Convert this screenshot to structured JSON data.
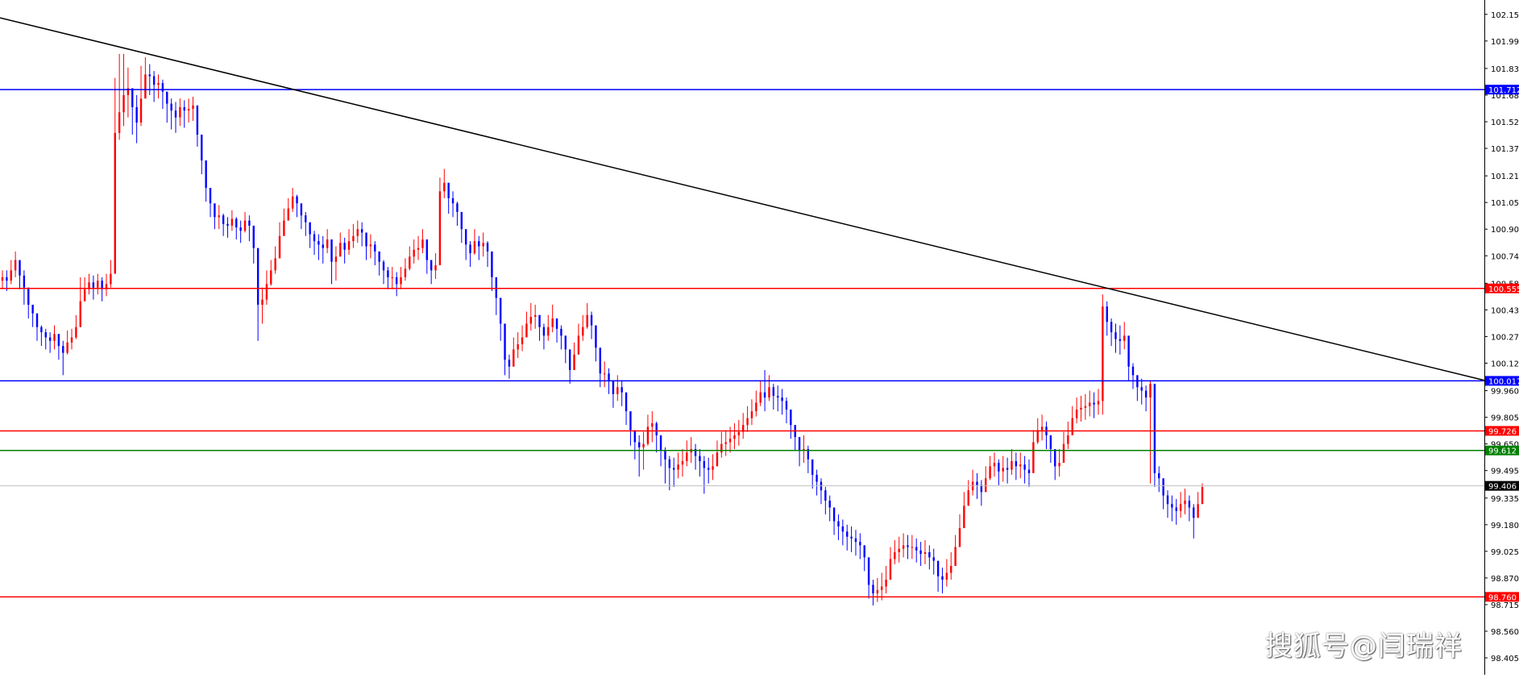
{
  "chart_data": {
    "type": "candlestick",
    "title": "",
    "ylim": [
      98.33,
      102.21
    ],
    "y_ticks": [
      "102.150",
      "101.995",
      "101.835",
      "101.680",
      "101.525",
      "101.370",
      "101.210",
      "101.055",
      "100.900",
      "100.745",
      "100.585",
      "100.430",
      "100.275",
      "100.120",
      "99.960",
      "99.805",
      "99.650",
      "99.495",
      "99.335",
      "99.180",
      "99.025",
      "98.870",
      "98.715",
      "98.560",
      "98.405"
    ],
    "current_price": "99.406",
    "up_color": "#ff0000",
    "down_color": "#0000ff",
    "levels": [
      {
        "label": "101.712",
        "value": 101.712,
        "color": "#0000ff"
      },
      {
        "label": "100.555",
        "value": 100.555,
        "color": "#ff0000"
      },
      {
        "label": "100.017",
        "value": 100.017,
        "color": "#0000ff"
      },
      {
        "label": "99.726",
        "value": 99.726,
        "color": "#ff0000"
      },
      {
        "label": "99.612",
        "value": 99.612,
        "color": "#008000"
      },
      {
        "label": "98.760",
        "value": 98.76,
        "color": "#ff0000"
      }
    ],
    "trendline": {
      "from": [
        0,
        102.13
      ],
      "to": [
        378,
        100.02
      ],
      "color": "#000000"
    },
    "series_close": [
      100.62,
      100.6,
      100.66,
      100.72,
      100.63,
      100.56,
      100.46,
      100.41,
      100.33,
      100.3,
      100.27,
      100.25,
      100.29,
      100.22,
      100.18,
      100.24,
      100.27,
      100.33,
      100.48,
      100.55,
      100.59,
      100.56,
      100.6,
      100.55,
      100.58,
      100.64,
      101.46,
      101.58,
      101.68,
      101.72,
      101.61,
      101.52,
      101.66,
      101.8,
      101.79,
      101.74,
      101.75,
      101.7,
      101.63,
      101.59,
      101.55,
      101.61,
      101.59,
      101.6,
      101.62,
      101.45,
      101.3,
      101.14,
      101.05,
      100.97,
      100.98,
      100.93,
      100.92,
      100.96,
      100.91,
      100.89,
      100.95,
      100.92,
      100.79,
      100.46,
      100.49,
      100.58,
      100.66,
      100.73,
      100.86,
      100.95,
      101.02,
      101.09,
      101.05,
      100.98,
      100.94,
      100.87,
      100.83,
      100.81,
      100.79,
      100.84,
      100.71,
      100.74,
      100.82,
      100.78,
      100.83,
      100.86,
      100.9,
      100.88,
      100.8,
      100.81,
      100.77,
      100.71,
      100.66,
      100.62,
      100.62,
      100.58,
      100.62,
      100.67,
      100.74,
      100.78,
      100.79,
      100.84,
      100.72,
      100.66,
      100.69,
      101.12,
      101.17,
      101.08,
      101.05,
      101.0,
      100.9,
      100.81,
      100.76,
      100.83,
      100.8,
      100.82,
      100.77,
      100.62,
      100.5,
      100.35,
      100.14,
      100.1,
      100.2,
      100.23,
      100.27,
      100.35,
      100.39,
      100.4,
      100.33,
      100.28,
      100.33,
      100.38,
      100.32,
      100.28,
      100.2,
      100.08,
      100.17,
      100.28,
      100.33,
      100.4,
      100.34,
      100.21,
      100.06,
      100.06,
      100.02,
      99.94,
      99.98,
      99.95,
      99.84,
      99.73,
      99.66,
      99.63,
      99.65,
      99.75,
      99.77,
      99.7,
      99.61,
      99.56,
      99.51,
      99.5,
      99.53,
      99.55,
      99.6,
      99.62,
      99.58,
      99.55,
      99.51,
      99.5,
      99.52,
      99.6,
      99.65,
      99.66,
      99.68,
      99.7,
      99.72,
      99.76,
      99.8,
      99.84,
      99.89,
      99.95,
      99.92,
      99.98,
      99.93,
      99.92,
      99.9,
      99.85,
      99.76,
      99.69,
      99.61,
      99.62,
      99.56,
      99.47,
      99.43,
      99.38,
      99.32,
      99.28,
      99.2,
      99.17,
      99.14,
      99.11,
      99.1,
      99.08,
      99.06,
      98.99,
      98.83,
      98.78,
      98.8,
      98.82,
      98.86,
      98.98,
      99.02,
      99.04,
      99.06,
      99.05,
      99.05,
      99.03,
      99.01,
      99.02,
      98.99,
      98.97,
      98.88,
      98.86,
      98.9,
      98.94,
      99.05,
      99.16,
      99.29,
      99.38,
      99.43,
      99.41,
      99.37,
      99.45,
      99.52,
      99.54,
      99.49,
      99.51,
      99.5,
      99.55,
      99.52,
      99.53,
      99.5,
      99.48,
      99.66,
      99.73,
      99.75,
      99.7,
      99.62,
      99.52,
      99.54,
      99.65,
      99.7,
      99.8,
      99.85,
      99.86,
      99.87,
      99.89,
      99.88,
      99.9,
      100.45,
      100.36,
      100.3,
      100.26,
      100.25,
      100.28,
      100.1,
      100.05,
      99.98,
      99.96,
      99.92,
      100.0,
      99.48,
      99.45,
      99.35,
      99.3,
      99.28,
      99.26,
      99.3,
      99.32,
      99.28,
      99.22,
      99.3,
      99.4
    ],
    "series_high": [
      100.66,
      100.66,
      100.72,
      100.77,
      100.7,
      100.66,
      100.52,
      100.46,
      100.4,
      100.34,
      100.32,
      100.3,
      100.34,
      100.28,
      100.25,
      100.31,
      100.32,
      100.4,
      100.62,
      100.62,
      100.64,
      100.63,
      100.64,
      100.62,
      100.64,
      100.72,
      101.78,
      101.92,
      101.92,
      101.84,
      101.68,
      101.68,
      101.85,
      101.9,
      101.86,
      101.82,
      101.8,
      101.77,
      101.7,
      101.66,
      101.64,
      101.66,
      101.65,
      101.66,
      101.67,
      101.52,
      101.38,
      101.2,
      101.1,
      101.03,
      101.04,
      100.99,
      100.97,
      101.01,
      100.97,
      100.95,
      101.0,
      100.98,
      100.86,
      100.55,
      100.56,
      100.66,
      100.72,
      100.8,
      100.94,
      101.02,
      101.08,
      101.14,
      101.1,
      101.04,
      101.0,
      100.93,
      100.89,
      100.87,
      100.86,
      100.9,
      100.79,
      100.8,
      100.88,
      100.85,
      100.9,
      100.93,
      100.95,
      100.94,
      100.86,
      100.87,
      100.83,
      100.77,
      100.72,
      100.68,
      100.68,
      100.65,
      100.68,
      100.73,
      100.8,
      100.84,
      100.86,
      100.9,
      100.8,
      100.72,
      100.76,
      101.2,
      101.25,
      101.16,
      101.12,
      101.06,
      100.96,
      100.88,
      100.83,
      100.9,
      100.86,
      100.88,
      100.83,
      100.7,
      100.57,
      100.42,
      100.22,
      100.17,
      100.27,
      100.3,
      100.34,
      100.42,
      100.47,
      100.46,
      100.4,
      100.35,
      100.4,
      100.46,
      100.38,
      100.34,
      100.27,
      100.16,
      100.24,
      100.35,
      100.4,
      100.47,
      100.42,
      100.29,
      100.13,
      100.13,
      100.09,
      100.01,
      100.05,
      100.02,
      99.92,
      99.81,
      99.73,
      99.7,
      99.72,
      99.82,
      99.84,
      99.78,
      99.68,
      99.63,
      99.58,
      99.57,
      99.6,
      99.62,
      99.67,
      99.69,
      99.65,
      99.62,
      99.58,
      99.57,
      99.59,
      99.67,
      99.72,
      99.73,
      99.75,
      99.77,
      99.79,
      99.83,
      99.87,
      99.91,
      99.96,
      100.02,
      100.08,
      100.05,
      100.0,
      99.99,
      99.97,
      99.92,
      99.84,
      99.76,
      99.68,
      99.7,
      99.64,
      99.55,
      99.5,
      99.45,
      99.4,
      99.35,
      99.28,
      99.24,
      99.21,
      99.18,
      99.17,
      99.15,
      99.13,
      99.06,
      98.91,
      98.86,
      98.87,
      98.9,
      98.94,
      99.05,
      99.09,
      99.11,
      99.13,
      99.12,
      99.12,
      99.1,
      99.08,
      99.09,
      99.06,
      99.04,
      98.95,
      98.93,
      98.98,
      99.02,
      99.12,
      99.24,
      99.37,
      99.44,
      99.5,
      99.48,
      99.44,
      99.52,
      99.58,
      99.6,
      99.56,
      99.58,
      99.57,
      99.62,
      99.6,
      99.6,
      99.58,
      99.56,
      99.73,
      99.8,
      99.82,
      99.78,
      99.7,
      99.6,
      99.62,
      99.72,
      99.78,
      99.87,
      99.92,
      99.93,
      99.94,
      99.96,
      99.95,
      99.97,
      100.52,
      100.48,
      100.38,
      100.35,
      100.34,
      100.36,
      100.18,
      100.12,
      100.05,
      100.03,
      99.99,
      100.02,
      99.55,
      99.52,
      99.43,
      99.38,
      99.35,
      99.33,
      99.37,
      99.39,
      99.35,
      99.3,
      99.37,
      99.42
    ],
    "series_low": [
      100.55,
      100.54,
      100.58,
      100.62,
      100.55,
      100.46,
      100.38,
      100.33,
      100.25,
      100.22,
      100.2,
      100.18,
      100.2,
      100.14,
      100.05,
      100.17,
      100.2,
      100.26,
      100.4,
      100.48,
      100.52,
      100.49,
      100.52,
      100.48,
      100.51,
      100.56,
      101.3,
      101.42,
      101.5,
      101.55,
      101.45,
      101.4,
      101.5,
      101.66,
      101.68,
      101.64,
      101.66,
      101.6,
      101.52,
      101.48,
      101.46,
      101.5,
      101.49,
      101.52,
      101.53,
      101.38,
      101.22,
      101.06,
      100.97,
      100.9,
      100.9,
      100.86,
      100.85,
      100.89,
      100.84,
      100.82,
      100.88,
      100.83,
      100.7,
      100.25,
      100.35,
      100.46,
      100.57,
      100.64,
      100.78,
      100.88,
      100.95,
      101.0,
      100.97,
      100.9,
      100.86,
      100.79,
      100.75,
      100.72,
      100.7,
      100.76,
      100.58,
      100.6,
      100.75,
      100.7,
      100.75,
      100.79,
      100.82,
      100.8,
      100.72,
      100.73,
      100.69,
      100.63,
      100.58,
      100.55,
      100.55,
      100.51,
      100.55,
      100.6,
      100.66,
      100.7,
      100.72,
      100.76,
      100.64,
      100.58,
      100.61,
      100.98,
      101.08,
      100.99,
      100.97,
      100.92,
      100.82,
      100.72,
      100.68,
      100.75,
      100.72,
      100.74,
      100.68,
      100.54,
      100.4,
      100.25,
      100.05,
      100.03,
      100.12,
      100.15,
      100.19,
      100.27,
      100.31,
      100.32,
      100.25,
      100.2,
      100.25,
      100.3,
      100.24,
      100.2,
      100.12,
      100.0,
      100.09,
      100.2,
      100.25,
      100.32,
      100.26,
      100.13,
      99.98,
      99.98,
      99.94,
      99.86,
      99.9,
      99.87,
      99.76,
      99.64,
      99.56,
      99.46,
      99.5,
      99.64,
      99.66,
      99.6,
      99.52,
      99.42,
      99.38,
      99.4,
      99.45,
      99.46,
      99.52,
      99.54,
      99.5,
      99.46,
      99.36,
      99.42,
      99.44,
      99.52,
      99.57,
      99.58,
      99.6,
      99.62,
      99.64,
      99.68,
      99.72,
      99.76,
      99.81,
      99.87,
      99.84,
      99.9,
      99.85,
      99.84,
      99.82,
      99.77,
      99.68,
      99.61,
      99.52,
      99.54,
      99.48,
      99.39,
      99.35,
      99.3,
      99.24,
      99.2,
      99.12,
      99.09,
      99.06,
      99.03,
      99.02,
      99.0,
      98.98,
      98.91,
      98.75,
      98.71,
      98.73,
      98.74,
      98.78,
      98.9,
      98.95,
      98.96,
      98.99,
      98.98,
      98.98,
      98.96,
      98.94,
      98.95,
      98.92,
      98.89,
      98.79,
      98.78,
      98.82,
      98.86,
      98.97,
      99.08,
      99.2,
      99.3,
      99.35,
      99.33,
      99.29,
      99.37,
      99.44,
      99.46,
      99.41,
      99.43,
      99.42,
      99.47,
      99.44,
      99.45,
      99.42,
      99.4,
      99.58,
      99.65,
      99.67,
      99.62,
      99.54,
      99.44,
      99.46,
      99.57,
      99.62,
      99.72,
      99.77,
      99.78,
      99.79,
      99.81,
      99.8,
      99.82,
      99.82,
      100.28,
      100.22,
      100.18,
      100.17,
      100.2,
      100.02,
      99.97,
      99.9,
      99.88,
      99.84,
      99.42,
      99.4,
      99.37,
      99.27,
      99.22,
      99.2,
      99.18,
      99.22,
      99.24,
      99.2,
      99.1,
      99.22,
      99.32
    ]
  },
  "watermark": "搜狐号@闫瑞祥",
  "icons": [
    "watermark-logo-icon"
  ]
}
